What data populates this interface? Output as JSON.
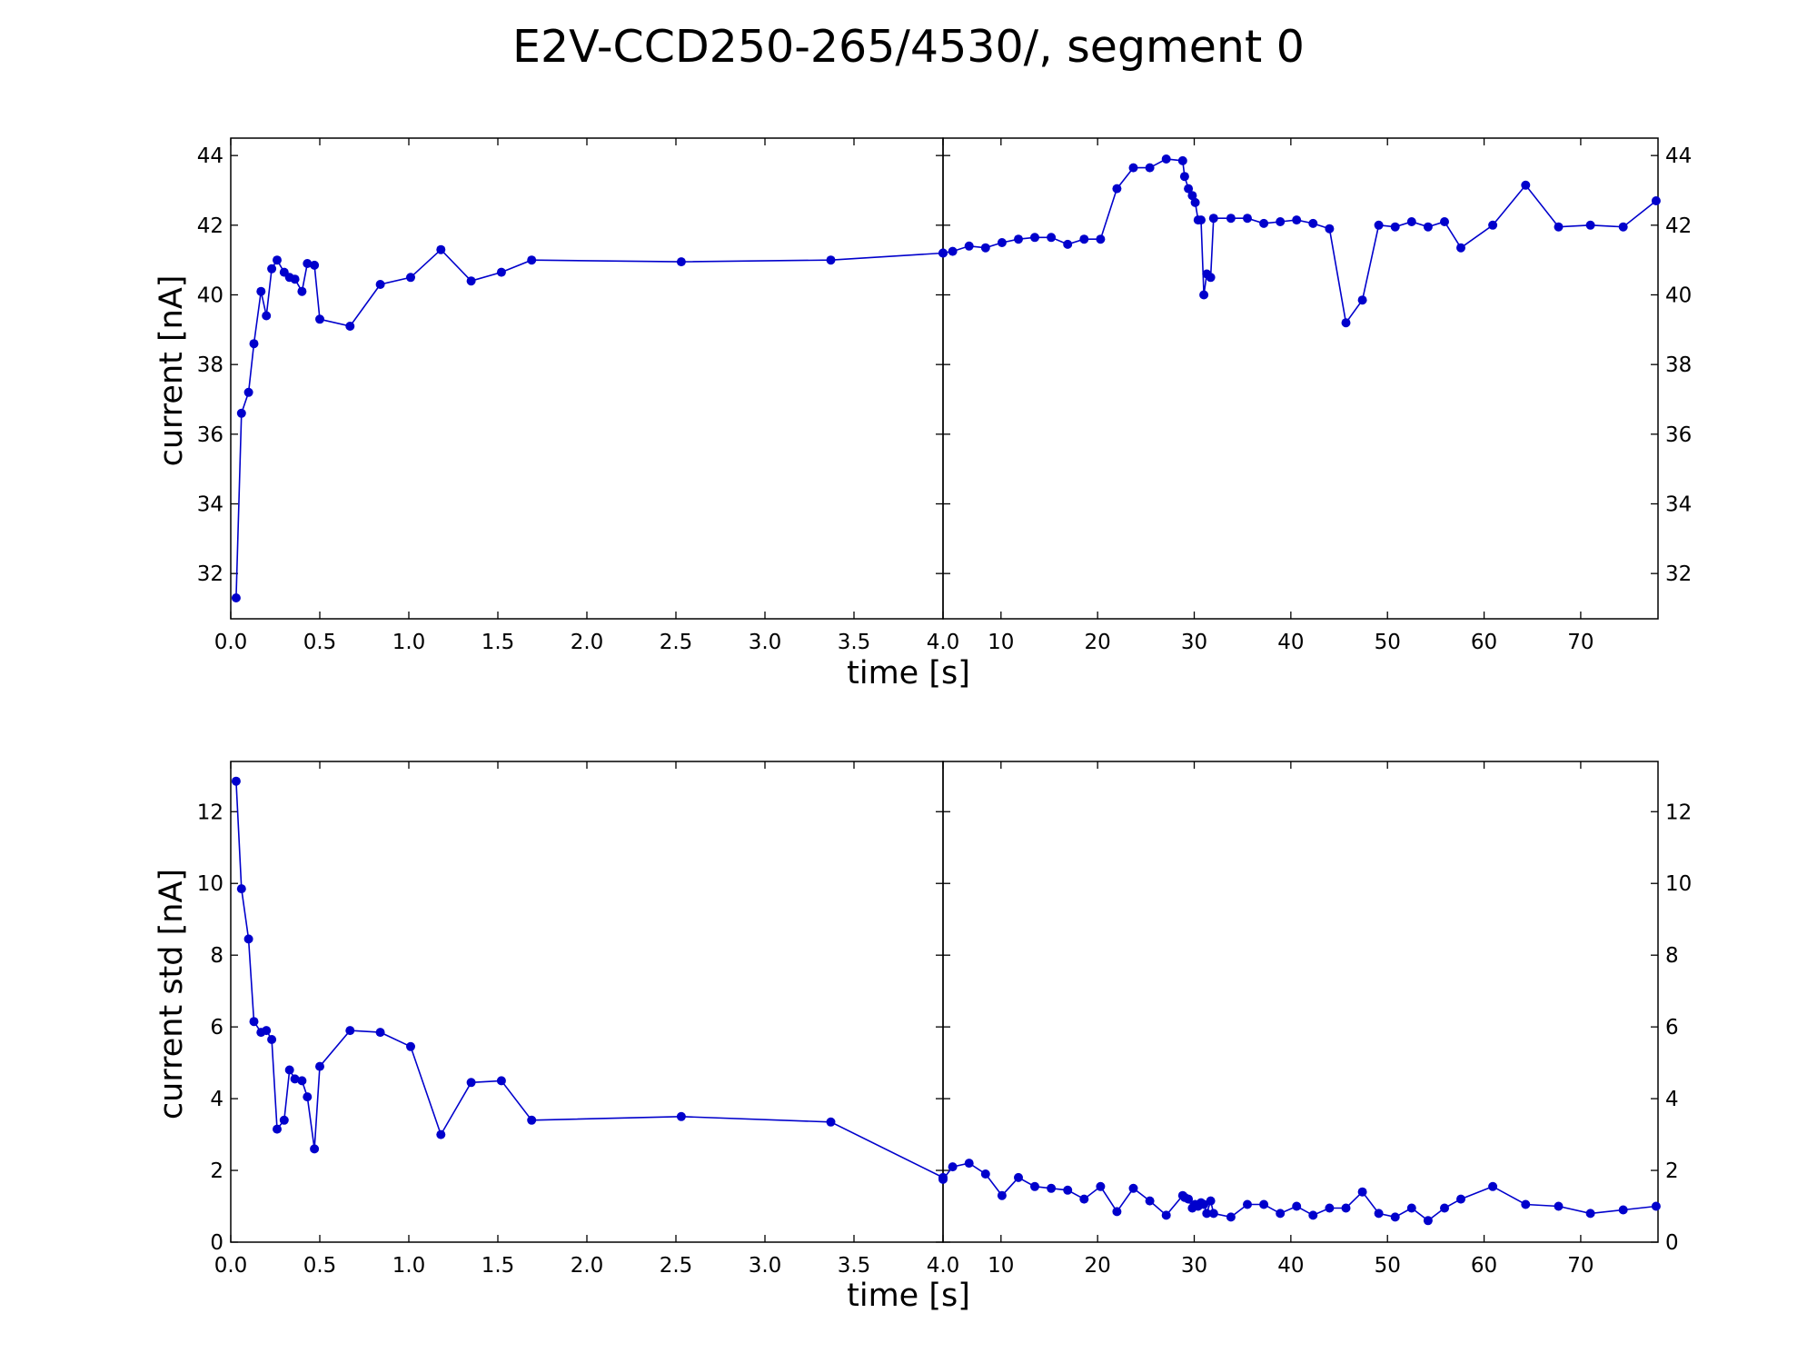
{
  "title": "E2V-CCD250-265/4530/, segment 0",
  "colors": {
    "series": "#0000cc",
    "marker": "#0000cc"
  },
  "chart_data": [
    {
      "type": "scatter",
      "ylabel": "current [nA]",
      "xlabel": "time [s]",
      "ylim": [
        30.7,
        44.5
      ],
      "yticks": [
        32,
        34,
        36,
        38,
        40,
        42,
        44
      ],
      "grid": false,
      "left_panel": {
        "xlim": [
          0,
          4.0
        ],
        "xticks": [
          "0.0",
          "0.5",
          "1.0",
          "1.5",
          "2.0",
          "2.5",
          "3.0",
          "3.5",
          "4.0"
        ],
        "x": [
          0.03,
          0.06,
          0.1,
          0.13,
          0.17,
          0.2,
          0.23,
          0.26,
          0.3,
          0.33,
          0.36,
          0.4,
          0.43,
          0.47,
          0.5,
          0.67,
          0.84,
          1.01,
          1.18,
          1.35,
          1.52,
          1.69,
          2.53,
          3.37,
          4.0
        ],
        "y": [
          31.3,
          36.6,
          37.2,
          38.6,
          40.1,
          39.4,
          40.75,
          41.0,
          40.65,
          40.5,
          40.45,
          40.1,
          40.9,
          40.85,
          39.3,
          39.1,
          40.3,
          40.5,
          41.3,
          40.4,
          40.65,
          41.0,
          40.95,
          41.0,
          41.2
        ]
      },
      "right_panel": {
        "xlim": [
          4.0,
          78.0
        ],
        "xticks": [
          "10",
          "20",
          "30",
          "40",
          "50",
          "60",
          "70"
        ],
        "x": [
          4.0,
          5.0,
          6.7,
          8.4,
          10.1,
          11.8,
          13.5,
          15.2,
          16.9,
          18.6,
          20.3,
          22.0,
          23.7,
          25.4,
          27.1,
          28.8,
          29.0,
          29.4,
          29.8,
          30.1,
          30.4,
          30.7,
          31.0,
          31.3,
          31.7,
          32.0,
          33.8,
          35.5,
          37.2,
          38.9,
          40.6,
          42.3,
          44.0,
          45.7,
          47.4,
          49.1,
          50.8,
          52.5,
          54.2,
          55.9,
          57.6,
          60.9,
          64.3,
          67.7,
          71.0,
          74.4,
          77.8
        ],
        "y": [
          41.2,
          41.25,
          41.4,
          41.35,
          41.5,
          41.6,
          41.65,
          41.65,
          41.45,
          41.6,
          41.6,
          43.05,
          43.65,
          43.65,
          43.9,
          43.85,
          43.4,
          43.05,
          42.85,
          42.65,
          42.15,
          42.15,
          40.0,
          40.6,
          40.5,
          42.2,
          42.2,
          42.2,
          42.05,
          42.1,
          42.15,
          42.05,
          41.9,
          39.2,
          39.85,
          42.0,
          41.95,
          42.1,
          41.95,
          42.1,
          41.35,
          42.0,
          43.15,
          41.95,
          42.0,
          41.95,
          42.7
        ]
      }
    },
    {
      "type": "scatter",
      "ylabel": "current std [nA]",
      "xlabel": "time [s]",
      "ylim": [
        0,
        13.4
      ],
      "yticks": [
        0,
        2,
        4,
        6,
        8,
        10,
        12
      ],
      "grid": false,
      "left_panel": {
        "xlim": [
          0,
          4.0
        ],
        "xticks": [
          "0.0",
          "0.5",
          "1.0",
          "1.5",
          "2.0",
          "2.5",
          "3.0",
          "3.5",
          "4.0"
        ],
        "x": [
          0.03,
          0.06,
          0.1,
          0.13,
          0.17,
          0.2,
          0.23,
          0.26,
          0.3,
          0.33,
          0.36,
          0.4,
          0.43,
          0.47,
          0.5,
          0.67,
          0.84,
          1.01,
          1.18,
          1.35,
          1.52,
          1.69,
          2.53,
          3.37,
          4.0
        ],
        "y": [
          12.85,
          9.85,
          8.45,
          6.15,
          5.85,
          5.9,
          5.65,
          3.15,
          3.4,
          4.8,
          4.55,
          4.5,
          4.05,
          2.6,
          4.9,
          5.9,
          5.85,
          5.45,
          3.0,
          4.45,
          4.5,
          3.4,
          3.5,
          3.35,
          1.8
        ]
      },
      "right_panel": {
        "xlim": [
          4.0,
          78.0
        ],
        "xticks": [
          "10",
          "20",
          "30",
          "40",
          "50",
          "60",
          "70"
        ],
        "x": [
          4.0,
          5.0,
          6.7,
          8.4,
          10.1,
          11.8,
          13.5,
          15.2,
          16.9,
          18.6,
          20.3,
          22.0,
          23.7,
          25.4,
          27.1,
          28.8,
          29.0,
          29.4,
          29.8,
          30.1,
          30.4,
          30.7,
          31.0,
          31.3,
          31.7,
          32.0,
          33.8,
          35.5,
          37.2,
          38.9,
          40.6,
          42.3,
          44.0,
          45.7,
          47.4,
          49.1,
          50.8,
          52.5,
          54.2,
          55.9,
          57.6,
          60.9,
          64.3,
          67.7,
          71.0,
          74.4,
          77.8
        ],
        "y": [
          1.75,
          2.1,
          2.2,
          1.9,
          1.3,
          1.8,
          1.55,
          1.5,
          1.45,
          1.2,
          1.55,
          0.85,
          1.5,
          1.15,
          0.75,
          1.3,
          1.25,
          1.2,
          0.95,
          1.05,
          1.0,
          1.1,
          1.05,
          0.8,
          1.15,
          0.8,
          0.7,
          1.05,
          1.05,
          0.8,
          1.0,
          0.75,
          0.95,
          0.95,
          1.4,
          0.8,
          0.7,
          0.95,
          0.6,
          0.95,
          1.2,
          1.55,
          1.05,
          1.0,
          0.8,
          0.9,
          1.0
        ]
      }
    }
  ]
}
